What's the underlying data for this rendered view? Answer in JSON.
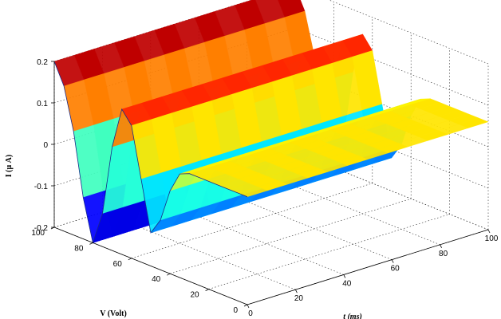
{
  "chart_data": {
    "type": "surface",
    "title": "",
    "xlabel": "t (ms)",
    "ylabel": "V (Volt)",
    "zlabel": "I (μ A)",
    "xlim": [
      0,
      100
    ],
    "ylim": [
      0,
      100
    ],
    "zlim": [
      -0.2,
      0.2
    ],
    "xticks": [
      0,
      20,
      40,
      60,
      80,
      100
    ],
    "yticks": [
      0,
      20,
      40,
      60,
      80,
      100
    ],
    "zticks": [
      -0.2,
      -0.1,
      0,
      0.1,
      0.2
    ],
    "grid": true,
    "colormap": "jet",
    "profile": {
      "t": [
        0,
        10,
        20,
        30,
        40,
        50,
        60,
        70,
        80,
        90,
        100
      ],
      "i_min": [
        -0.2,
        -0.2,
        -0.2,
        -0.2,
        -0.2,
        -0.2,
        -0.2,
        -0.2,
        -0.2,
        -0.2,
        -0.2
      ],
      "i_max": [
        0.2,
        0.2,
        0.2,
        0.2,
        0.2,
        0.2,
        0.2,
        0.2,
        0.2,
        0.2,
        0.2
      ]
    },
    "surface_profile_v": [
      100,
      95,
      90,
      85,
      80,
      75,
      70,
      65,
      60,
      55,
      50,
      45,
      40,
      35,
      30,
      25,
      20,
      15,
      10,
      5,
      0
    ],
    "surface_profile_i": [
      0.2,
      0.15,
      0.05,
      -0.1,
      -0.2,
      -0.12,
      0.05,
      0.15,
      0.12,
      0.0,
      -0.12,
      -0.08,
      0.0,
      0.05,
      0.06,
      0.06,
      0.06,
      0.06,
      0.06,
      0.06,
      0.06
    ]
  }
}
